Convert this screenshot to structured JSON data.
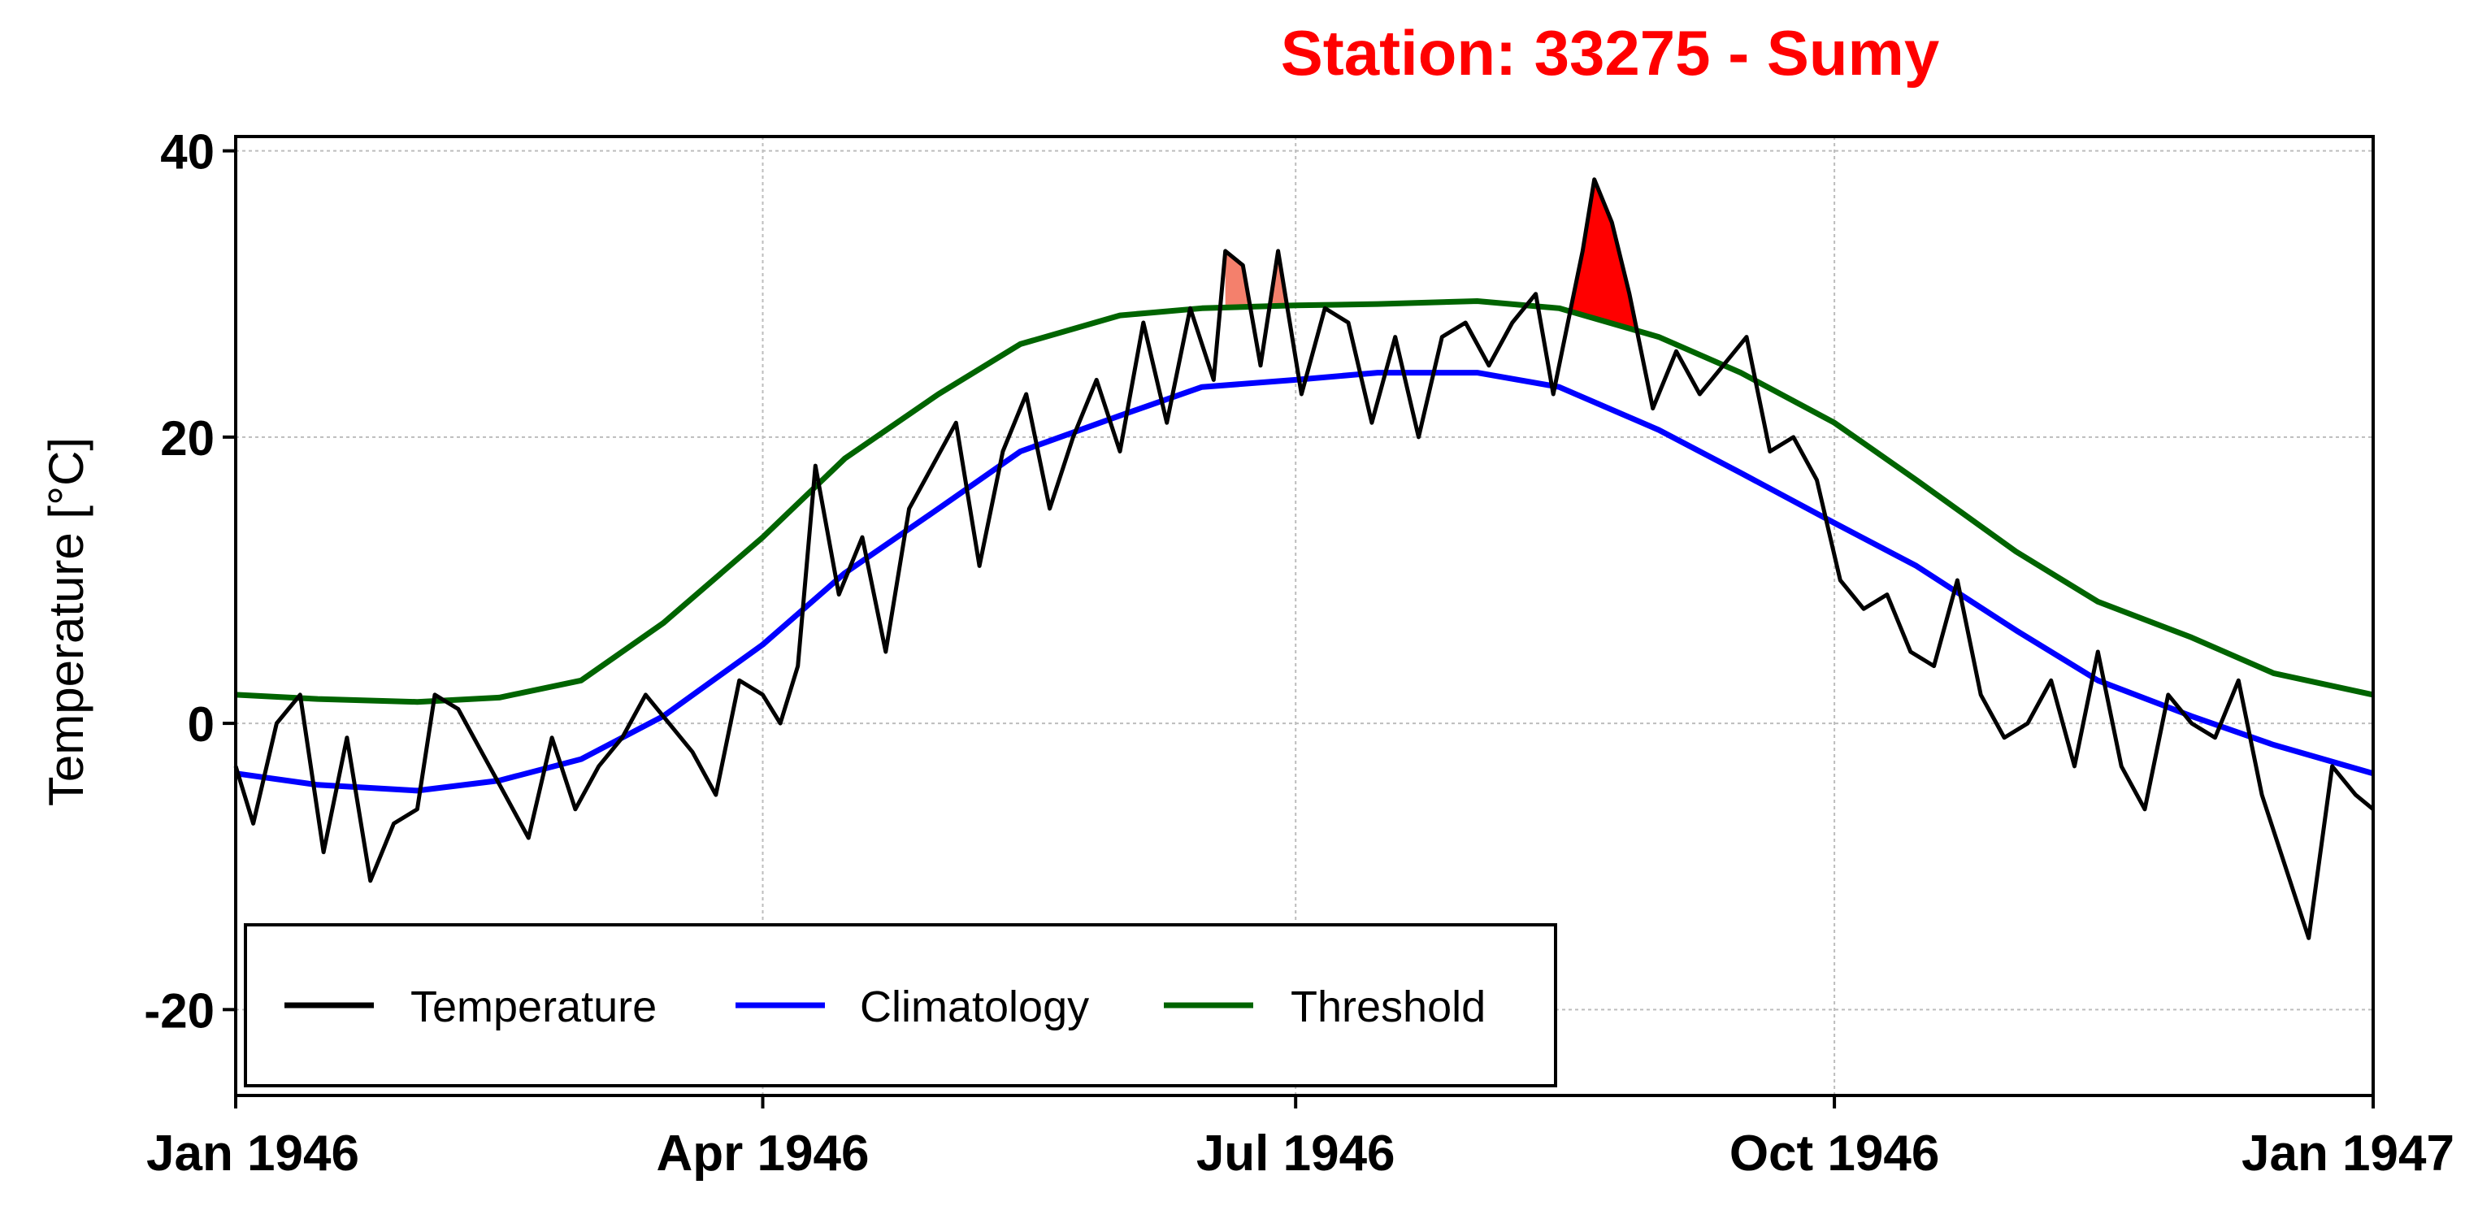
{
  "chart_data": {
    "type": "line",
    "title": "Station: 33275 - Sumy",
    "ylabel": "Temperature [°C]",
    "xlabel": "",
    "xlim": [
      "1946-01-01",
      "1947-01-01"
    ],
    "ylim": [
      -26,
      41
    ],
    "grid": true,
    "legend_position": "bottom-left",
    "x_ticks": [
      {
        "label": "Jan 1946",
        "date": "1946-01-01"
      },
      {
        "label": "Apr 1946",
        "date": "1946-04-01"
      },
      {
        "label": "Jul 1946",
        "date": "1946-07-01"
      },
      {
        "label": "Oct 1946",
        "date": "1946-10-01"
      },
      {
        "label": "Jan 1947",
        "date": "1947-01-01"
      }
    ],
    "y_ticks": [
      {
        "label": "-20",
        "value": -20
      },
      {
        "label": "0",
        "value": 0
      },
      {
        "label": "20",
        "value": 20
      },
      {
        "label": "40",
        "value": 40
      }
    ],
    "colors": {
      "title": "#ff0000",
      "temperature": "#000000",
      "climatology": "#0000ff",
      "threshold": "#006400",
      "heatwave_minor": "#f4806c",
      "heatwave_major": "#ff0000"
    },
    "series": [
      {
        "name": "Climatology",
        "key": "climatology",
        "x": [
          "1946-01-01",
          "1946-01-15",
          "1946-02-01",
          "1946-02-15",
          "1946-03-01",
          "1946-03-15",
          "1946-04-01",
          "1946-04-15",
          "1946-05-01",
          "1946-05-15",
          "1946-06-01",
          "1946-06-15",
          "1946-07-01",
          "1946-07-15",
          "1946-08-01",
          "1946-08-15",
          "1946-09-01",
          "1946-09-15",
          "1946-10-01",
          "1946-10-15",
          "1946-11-01",
          "1946-11-15",
          "1946-12-01",
          "1946-12-15",
          "1947-01-01"
        ],
        "values": [
          -3.5,
          -4.3,
          -4.7,
          -4.0,
          -2.5,
          0.5,
          5.5,
          10.5,
          15.0,
          19.0,
          21.5,
          23.5,
          24.0,
          24.5,
          24.5,
          23.5,
          20.5,
          17.5,
          14.0,
          11.0,
          6.5,
          3.0,
          0.5,
          -1.5,
          -3.5
        ]
      },
      {
        "name": "Threshold",
        "key": "threshold",
        "x": [
          "1946-01-01",
          "1946-01-15",
          "1946-02-01",
          "1946-02-15",
          "1946-03-01",
          "1946-03-15",
          "1946-04-01",
          "1946-04-15",
          "1946-05-01",
          "1946-05-15",
          "1946-06-01",
          "1946-06-15",
          "1946-07-01",
          "1946-07-15",
          "1946-08-01",
          "1946-08-15",
          "1946-09-01",
          "1946-09-15",
          "1946-10-01",
          "1946-10-15",
          "1946-11-01",
          "1946-11-15",
          "1946-12-01",
          "1946-12-15",
          "1947-01-01"
        ],
        "values": [
          2.0,
          1.7,
          1.5,
          1.8,
          3.0,
          7.0,
          13.0,
          18.5,
          23.0,
          26.5,
          28.5,
          29.0,
          29.2,
          29.3,
          29.5,
          29.0,
          27.0,
          24.5,
          21.0,
          17.0,
          12.0,
          8.5,
          6.0,
          3.5,
          2.0
        ]
      },
      {
        "name": "Temperature",
        "key": "temperature",
        "x": [
          "1946-01-01",
          "1946-01-04",
          "1946-01-08",
          "1946-01-12",
          "1946-01-16",
          "1946-01-20",
          "1946-01-24",
          "1946-01-28",
          "1946-02-01",
          "1946-02-04",
          "1946-02-08",
          "1946-02-12",
          "1946-02-16",
          "1946-02-20",
          "1946-02-24",
          "1946-02-28",
          "1946-03-04",
          "1946-03-08",
          "1946-03-12",
          "1946-03-16",
          "1946-03-20",
          "1946-03-24",
          "1946-03-28",
          "1946-04-01",
          "1946-04-04",
          "1946-04-07",
          "1946-04-10",
          "1946-04-14",
          "1946-04-18",
          "1946-04-22",
          "1946-04-26",
          "1946-04-30",
          "1946-05-04",
          "1946-05-08",
          "1946-05-12",
          "1946-05-16",
          "1946-05-20",
          "1946-05-24",
          "1946-05-28",
          "1946-06-01",
          "1946-06-05",
          "1946-06-09",
          "1946-06-13",
          "1946-06-17",
          "1946-06-19",
          "1946-06-22",
          "1946-06-25",
          "1946-06-28",
          "1946-07-02",
          "1946-07-06",
          "1946-07-10",
          "1946-07-14",
          "1946-07-18",
          "1946-07-22",
          "1946-07-26",
          "1946-07-30",
          "1946-08-03",
          "1946-08-07",
          "1946-08-11",
          "1946-08-14",
          "1946-08-17",
          "1946-08-19",
          "1946-08-21",
          "1946-08-24",
          "1946-08-27",
          "1946-08-31",
          "1946-09-04",
          "1946-09-08",
          "1946-09-12",
          "1946-09-16",
          "1946-09-20",
          "1946-09-24",
          "1946-09-28",
          "1946-10-02",
          "1946-10-06",
          "1946-10-10",
          "1946-10-14",
          "1946-10-18",
          "1946-10-22",
          "1946-10-26",
          "1946-10-30",
          "1946-11-03",
          "1946-11-07",
          "1946-11-11",
          "1946-11-15",
          "1946-11-19",
          "1946-11-23",
          "1946-11-27",
          "1946-12-01",
          "1946-12-05",
          "1946-12-09",
          "1946-12-13",
          "1946-12-17",
          "1946-12-21",
          "1946-12-25",
          "1946-12-29",
          "1947-01-01"
        ],
        "values": [
          -3,
          -7,
          0,
          2,
          -9,
          -1,
          -11,
          -7,
          -6,
          2,
          1,
          -2,
          -5,
          -8,
          -1,
          -6,
          -3,
          -1,
          2,
          0,
          -2,
          -5,
          3,
          2,
          0,
          4,
          18,
          9,
          13,
          5,
          15,
          18,
          21,
          11,
          19,
          23,
          15,
          20,
          24,
          19,
          28,
          21,
          29,
          24,
          33,
          32,
          25,
          33,
          23,
          29,
          28,
          21,
          27,
          20,
          27,
          28,
          25,
          28,
          30,
          23,
          29,
          33,
          38,
          35,
          30,
          22,
          26,
          23,
          25,
          27,
          19,
          20,
          17,
          10,
          8,
          9,
          5,
          4,
          10,
          2,
          -1,
          0,
          3,
          -3,
          5,
          -3,
          -6,
          2,
          0,
          -1,
          3,
          -5,
          -10,
          -15,
          -3,
          -5,
          -6
        ]
      }
    ],
    "highlight_regions": [
      {
        "key": "heatwave_minor",
        "start": "1946-06-19",
        "end": "1946-06-25"
      },
      {
        "key": "heatwave_minor",
        "start": "1946-06-27",
        "end": "1946-06-30"
      },
      {
        "key": "heatwave_major",
        "start": "1946-08-15",
        "end": "1946-08-28"
      }
    ]
  }
}
